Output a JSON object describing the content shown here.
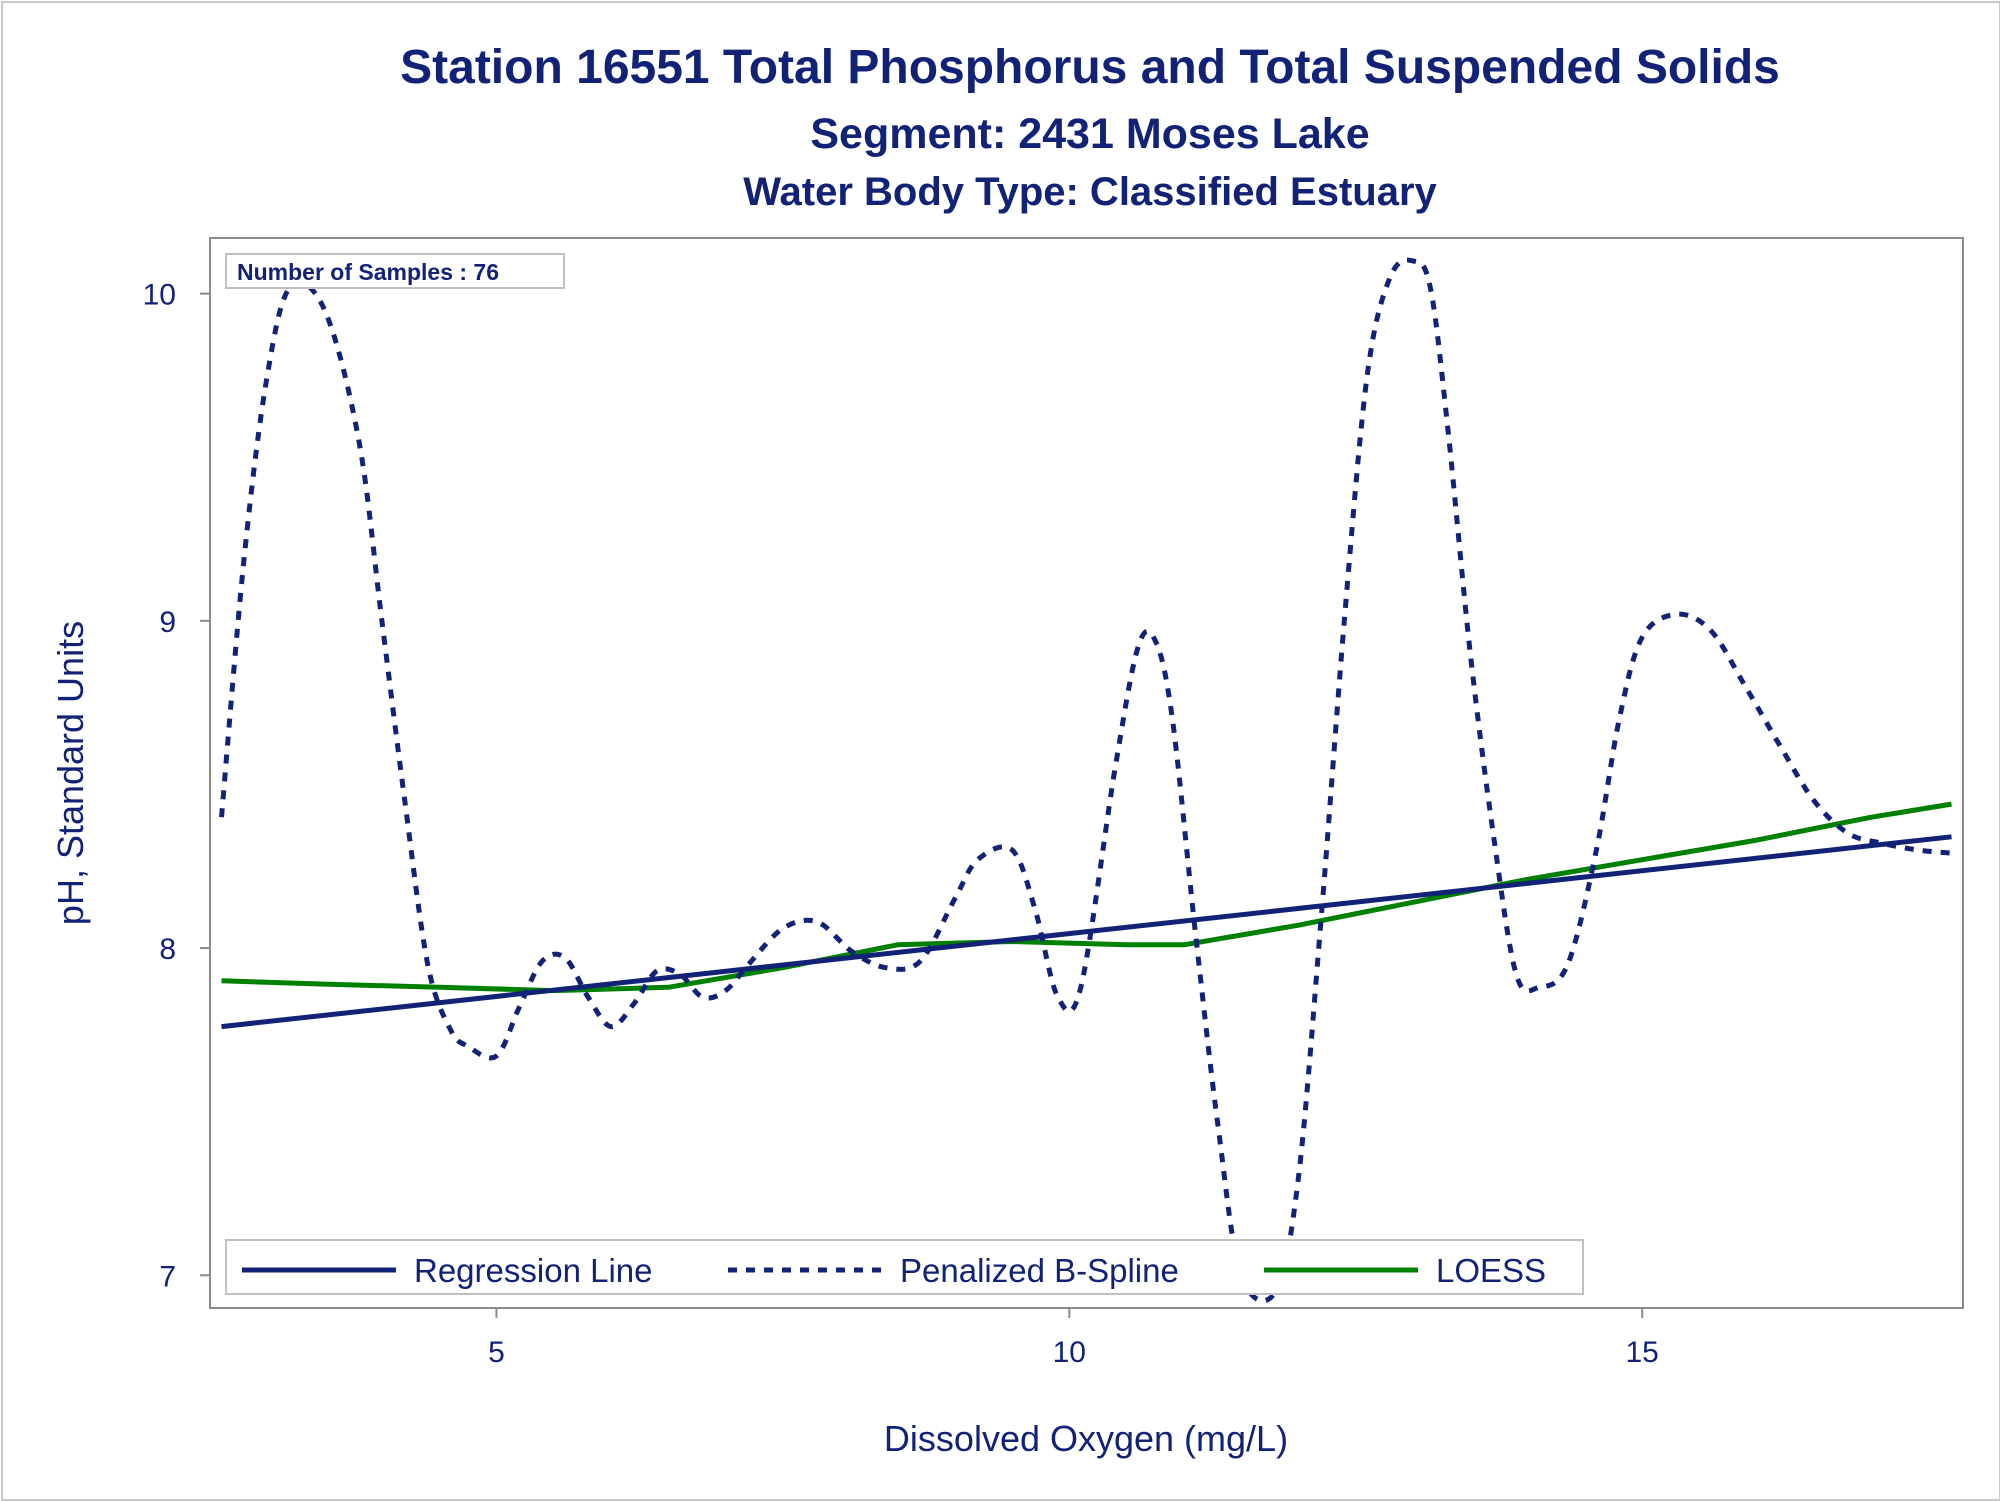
{
  "chart_data": {
    "type": "line",
    "title": "Station 16551  Total Phosphorus and Total Suspended Solids",
    "subtitle": "Segment: 2431  Moses Lake",
    "subtitle2": "Water Body Type: Classified Estuary",
    "xlabel": "Dissolved Oxygen (mg/L)",
    "ylabel": "pH, Standard Units",
    "xlim": [
      2.5,
      17.8
    ],
    "ylim": [
      6.9,
      10.17
    ],
    "x_ticks": [
      5,
      10,
      15
    ],
    "y_ticks": [
      7,
      8,
      9,
      10
    ],
    "x_tick_labels": [
      "5",
      "10",
      "15"
    ],
    "y_tick_labels": [
      "7",
      "8",
      "9",
      "10"
    ],
    "inset": "Number of Samples : 76",
    "legend_position": "bottom-left inside",
    "series": [
      {
        "name": "Regression Line",
        "style": "solid",
        "color": "#112277",
        "x": [
          2.6,
          17.7
        ],
        "y": [
          7.76,
          8.34
        ]
      },
      {
        "name": "Penalized B-Spline",
        "style": "dashed",
        "color": "#112277",
        "x": [
          2.6,
          2.8,
          3.0,
          3.2,
          3.5,
          3.8,
          4.0,
          4.2,
          4.4,
          4.6,
          4.75,
          5.0,
          5.2,
          5.4,
          5.6,
          5.8,
          6.0,
          6.2,
          6.4,
          6.6,
          6.8,
          7.0,
          7.2,
          7.5,
          7.8,
          8.1,
          8.4,
          8.7,
          9.0,
          9.2,
          9.5,
          9.7,
          9.9,
          10.1,
          10.4,
          10.6,
          10.75,
          10.9,
          11.1,
          11.3,
          11.5,
          11.8,
          12.0,
          12.2,
          12.4,
          12.6,
          12.8,
          13.0,
          13.15,
          13.3,
          13.5,
          13.7,
          13.9,
          14.1,
          14.35,
          14.6,
          14.8,
          15.0,
          15.3,
          15.6,
          15.9,
          16.2,
          16.5,
          16.8,
          17.1,
          17.4,
          17.7
        ],
        "y": [
          8.4,
          9.2,
          9.75,
          10.02,
          9.95,
          9.55,
          9.0,
          8.45,
          7.95,
          7.75,
          7.7,
          7.67,
          7.82,
          7.96,
          7.97,
          7.85,
          7.76,
          7.83,
          7.93,
          7.92,
          7.85,
          7.87,
          7.95,
          8.06,
          8.08,
          7.99,
          7.94,
          7.96,
          8.15,
          8.27,
          8.3,
          8.12,
          7.85,
          7.88,
          8.55,
          8.92,
          8.94,
          8.7,
          8.05,
          7.45,
          7.0,
          6.95,
          7.3,
          8.1,
          9.0,
          9.75,
          10.05,
          10.1,
          10.02,
          9.6,
          8.9,
          8.35,
          7.92,
          7.88,
          7.95,
          8.3,
          8.7,
          8.95,
          9.02,
          8.97,
          8.8,
          8.62,
          8.45,
          8.35,
          8.32,
          8.3,
          8.29
        ]
      },
      {
        "name": "LOESS",
        "style": "solid",
        "color": "#008000",
        "x": [
          2.6,
          3.5,
          4.5,
          5.5,
          6.5,
          7.5,
          8.5,
          9.5,
          10.5,
          11.0,
          12.0,
          13.0,
          14.0,
          15.0,
          16.0,
          17.0,
          17.7
        ],
        "y": [
          7.9,
          7.89,
          7.88,
          7.87,
          7.88,
          7.94,
          8.01,
          8.02,
          8.01,
          8.01,
          8.07,
          8.14,
          8.21,
          8.27,
          8.33,
          8.4,
          8.44
        ]
      }
    ]
  }
}
